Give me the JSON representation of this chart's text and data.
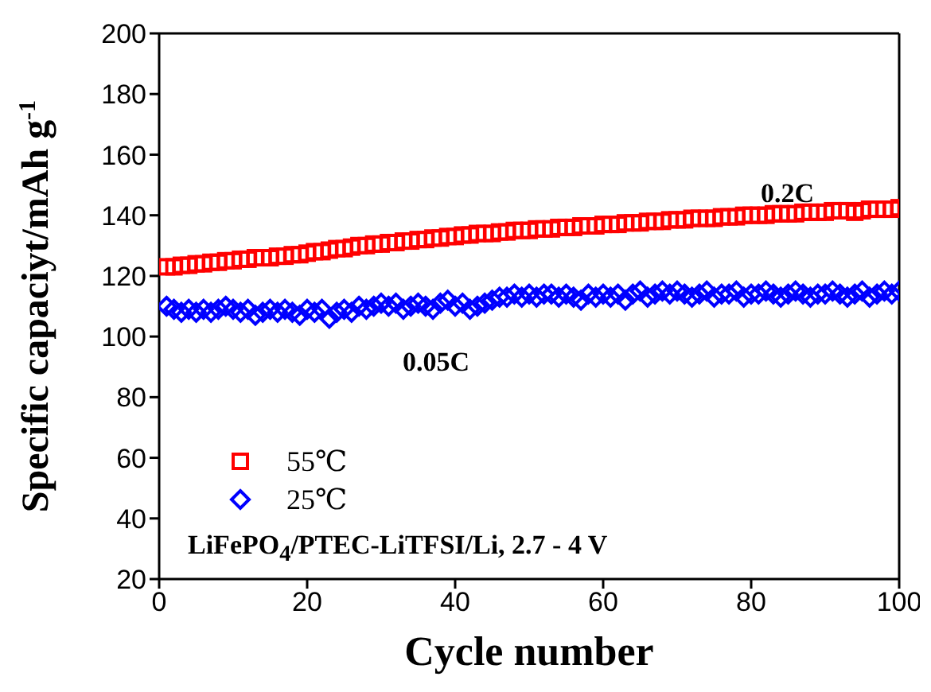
{
  "chart_data": {
    "type": "scatter",
    "xlabel": "Cycle number",
    "ylabel": "Specific capaciyt/mAh g$^{-1}$",
    "x": [
      1,
      2,
      3,
      4,
      5,
      6,
      7,
      8,
      9,
      10,
      11,
      12,
      13,
      14,
      15,
      16,
      17,
      18,
      19,
      20,
      21,
      22,
      23,
      24,
      25,
      26,
      27,
      28,
      29,
      30,
      31,
      32,
      33,
      34,
      35,
      36,
      37,
      38,
      39,
      40,
      41,
      42,
      43,
      44,
      45,
      46,
      47,
      48,
      49,
      50,
      51,
      52,
      53,
      54,
      55,
      56,
      57,
      58,
      59,
      60,
      61,
      62,
      63,
      64,
      65,
      66,
      67,
      68,
      69,
      70,
      71,
      72,
      73,
      74,
      75,
      76,
      77,
      78,
      79,
      80,
      81,
      82,
      83,
      84,
      85,
      86,
      87,
      88,
      89,
      90,
      91,
      92,
      93,
      94,
      95,
      96,
      97,
      98,
      99,
      100
    ],
    "series": [
      {
        "name": "55℃",
        "color": "#ff0000",
        "marker": "square",
        "values": [
          123,
          123,
          123.5,
          123.5,
          124,
          124,
          124.5,
          124.5,
          125,
          125,
          125.5,
          125.5,
          126,
          126,
          126,
          126.5,
          126.5,
          127,
          127,
          127.5,
          128,
          128,
          128.5,
          129,
          129,
          129.5,
          130,
          130,
          130.5,
          130.5,
          131,
          131,
          131.5,
          131.5,
          132,
          132,
          132.5,
          132.5,
          133,
          133,
          133.5,
          133.5,
          134,
          134,
          134,
          134.5,
          134.5,
          135,
          135,
          135,
          135.5,
          135.5,
          135.5,
          136,
          136,
          136,
          136.5,
          136.5,
          136.5,
          137,
          137,
          137,
          137.5,
          137.5,
          137.5,
          138,
          138,
          138,
          138.5,
          138.5,
          138.5,
          139,
          139,
          139,
          139,
          139.5,
          139.5,
          139.5,
          140,
          140,
          140,
          140,
          140.5,
          140.5,
          140.5,
          140.5,
          141,
          141,
          141,
          141,
          141.5,
          141.5,
          141.5,
          141,
          141.5,
          142,
          142,
          142,
          142,
          142.5
        ]
      },
      {
        "name": "25℃",
        "color": "#0000ff",
        "marker": "diamond",
        "values": [
          110,
          109,
          108,
          109,
          108,
          109,
          108,
          109,
          110,
          109,
          108,
          109,
          107,
          108,
          109,
          108,
          109,
          108,
          107,
          109,
          108,
          109,
          106,
          108,
          109,
          108,
          110,
          109,
          110,
          111,
          110,
          111,
          109,
          110,
          111,
          110,
          109,
          111,
          112,
          110,
          111,
          109,
          110,
          111,
          112,
          113,
          113,
          114,
          113,
          114,
          113,
          114,
          114,
          113,
          114,
          113,
          112,
          114,
          113,
          114,
          113,
          114,
          112,
          114,
          115,
          113,
          114,
          115,
          114,
          115,
          114,
          113,
          114,
          115,
          113,
          114,
          114,
          115,
          113,
          114,
          114,
          115,
          114,
          113,
          114,
          115,
          114,
          113,
          114,
          114,
          115,
          114,
          113,
          114,
          115,
          113,
          114,
          115,
          114,
          115
        ]
      }
    ],
    "xlim": [
      0,
      100
    ],
    "xticks": [
      0,
      20,
      40,
      60,
      80,
      100
    ],
    "ylim": [
      20,
      200
    ],
    "yticks": [
      20,
      40,
      60,
      80,
      100,
      120,
      140,
      160,
      180,
      200
    ],
    "grid": false,
    "legend": "left",
    "annotations": [
      "0.2C",
      "0.05C",
      "LiFePO$_{4}$/PTEC-LiTFSI/Li, 2.7 - 4 V"
    ]
  }
}
